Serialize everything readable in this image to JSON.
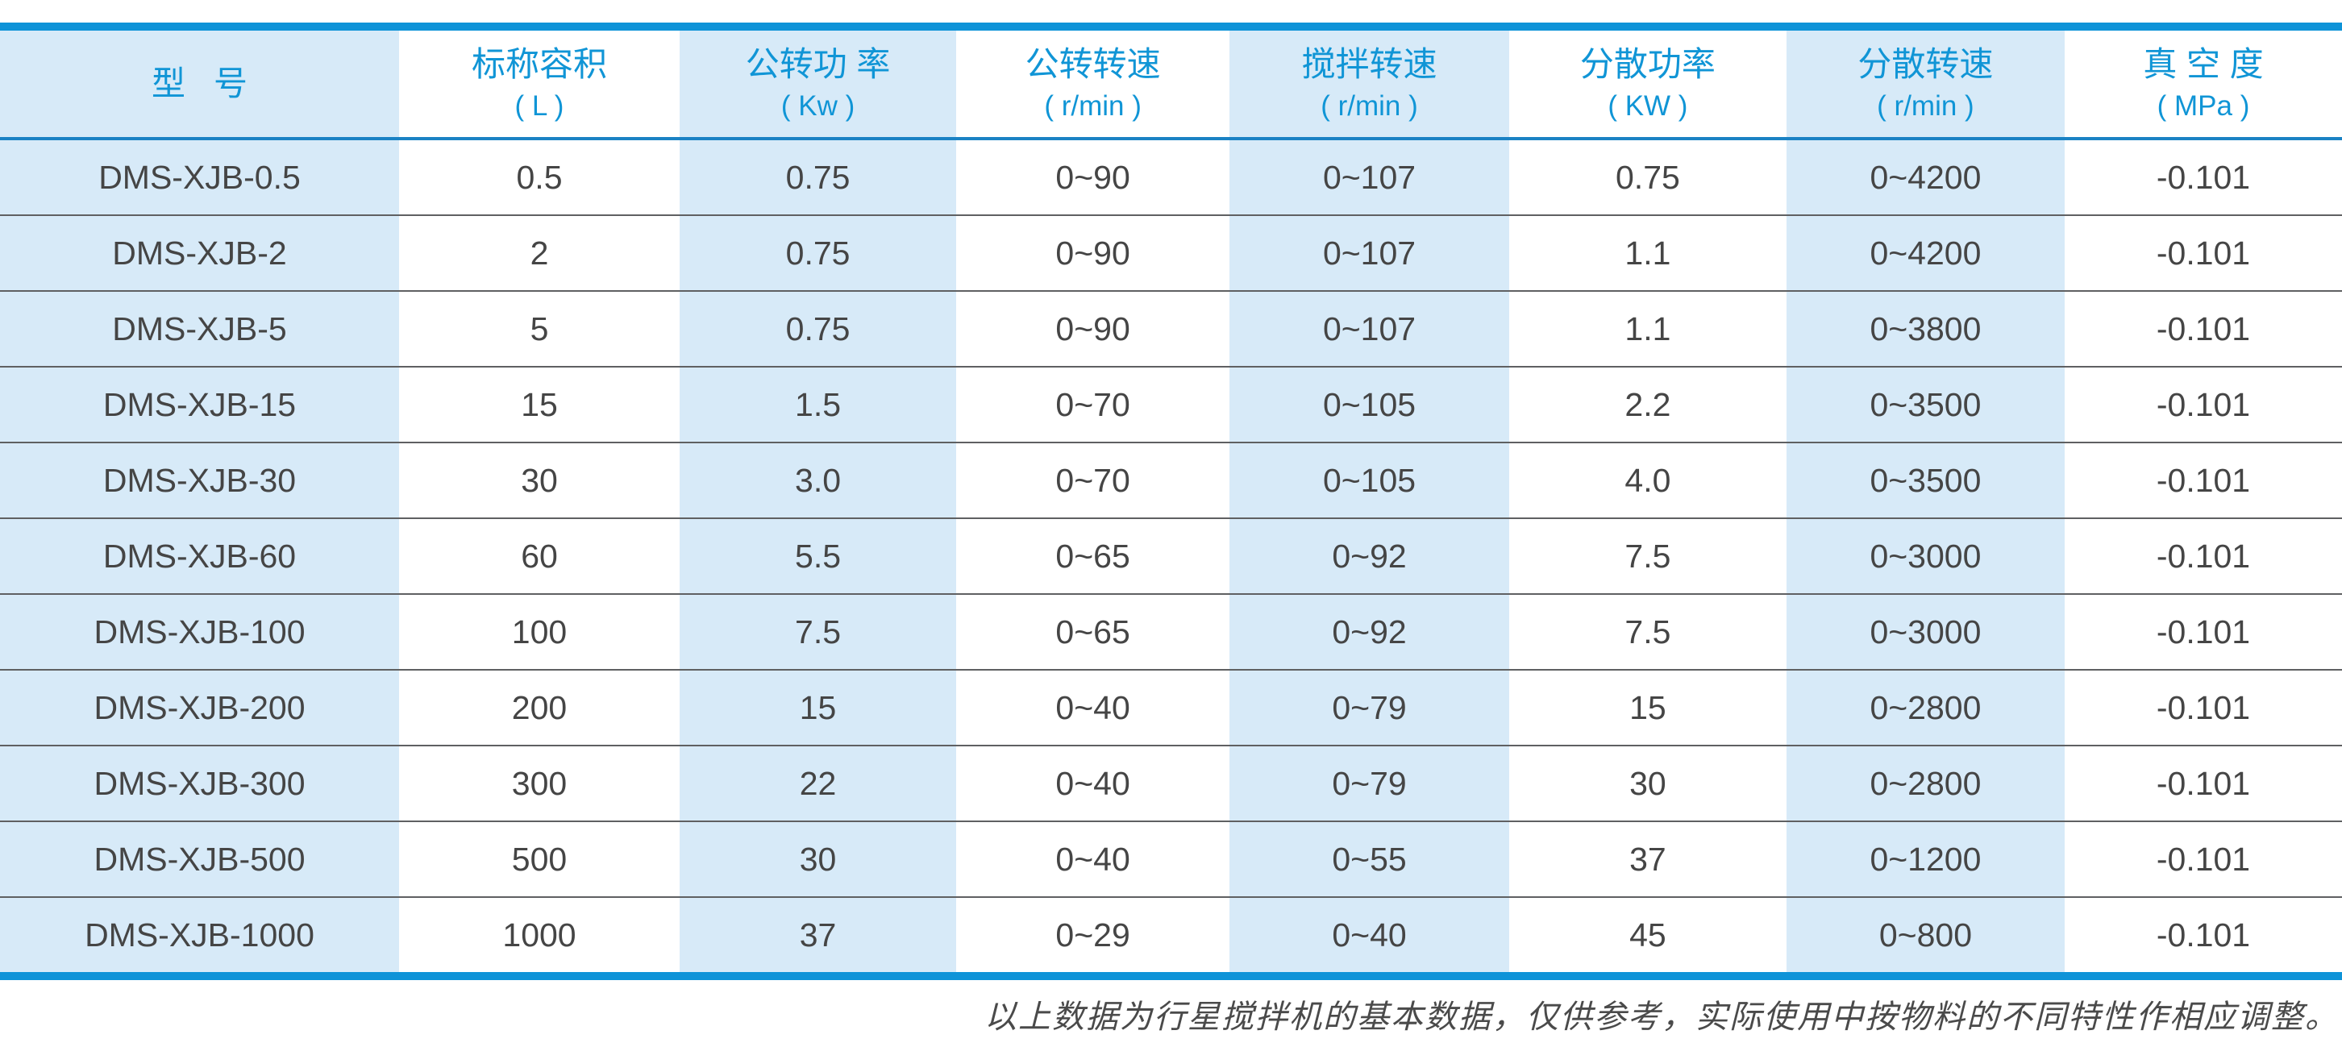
{
  "table": {
    "columns": [
      {
        "label": "型   号",
        "unit": ""
      },
      {
        "label": "标称容积",
        "unit": "( L )"
      },
      {
        "label": "公转功 率",
        "unit": "( Kw )"
      },
      {
        "label": "公转转速",
        "unit": "( r/min )"
      },
      {
        "label": "搅拌转速",
        "unit": "( r/min )"
      },
      {
        "label": "分散功率",
        "unit": "( KW )"
      },
      {
        "label": "分散转速",
        "unit": "( r/min )"
      },
      {
        "label": "真 空 度",
        "unit": "( MPa )"
      }
    ],
    "rows": [
      {
        "cells": [
          "DMS-XJB-0.5",
          "0.5",
          "0.75",
          "0~90",
          "0~107",
          "0.75",
          "0~4200",
          "-0.101"
        ]
      },
      {
        "cells": [
          "DMS-XJB-2",
          "2",
          "0.75",
          "0~90",
          "0~107",
          "1.1",
          "0~4200",
          "-0.101"
        ]
      },
      {
        "cells": [
          "DMS-XJB-5",
          "5",
          "0.75",
          "0~90",
          "0~107",
          "1.1",
          "0~3800",
          "-0.101"
        ]
      },
      {
        "cells": [
          "DMS-XJB-15",
          "15",
          "1.5",
          "0~70",
          "0~105",
          "2.2",
          "0~3500",
          "-0.101"
        ]
      },
      {
        "cells": [
          "DMS-XJB-30",
          "30",
          "3.0",
          "0~70",
          "0~105",
          "4.0",
          "0~3500",
          "-0.101"
        ]
      },
      {
        "cells": [
          "DMS-XJB-60",
          "60",
          "5.5",
          "0~65",
          "0~92",
          "7.5",
          "0~3000",
          "-0.101"
        ]
      },
      {
        "cells": [
          "DMS-XJB-100",
          "100",
          "7.5",
          "0~65",
          "0~92",
          "7.5",
          "0~3000",
          "-0.101"
        ]
      },
      {
        "cells": [
          "DMS-XJB-200",
          "200",
          "15",
          "0~40",
          "0~79",
          "15",
          "0~2800",
          "-0.101"
        ]
      },
      {
        "cells": [
          "DMS-XJB-300",
          "300",
          "22",
          "0~40",
          "0~79",
          "30",
          "0~2800",
          "-0.101"
        ]
      },
      {
        "cells": [
          "DMS-XJB-500",
          "500",
          "30",
          "0~40",
          "0~55",
          "37",
          "0~1200",
          "-0.101"
        ]
      },
      {
        "cells": [
          "DMS-XJB-1000",
          "1000",
          "37",
          "0~29",
          "0~40",
          "45",
          "0~800",
          "-0.101"
        ]
      }
    ]
  },
  "footnote": "以上数据为行星搅拌机的基本数据，仅供参考，实际使用中按物料的不同特性作相应调整。",
  "colors": {
    "accent-blue": "#0e93d8",
    "header-line": "#1a82c4",
    "row-line": "#5f6062",
    "cell-blue": "#d7eaf8",
    "header-text": "#1095d6",
    "body-text": "#454545",
    "note-text": "#4a4a4a"
  }
}
